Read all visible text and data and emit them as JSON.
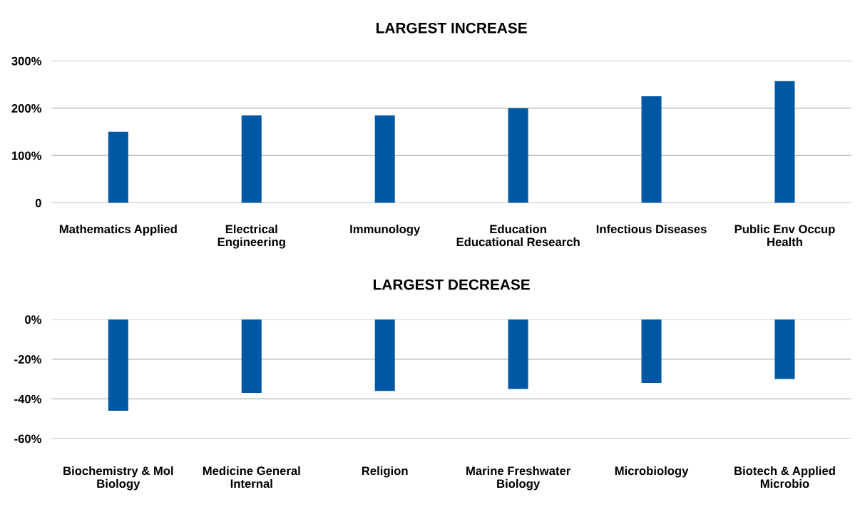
{
  "chart_data": [
    {
      "type": "bar",
      "title": "LARGEST INCREASE",
      "categories": [
        "Mathematics Applied",
        "Electrical Engineering",
        "Immunology",
        "Education Educational Research",
        "Infectious Diseases",
        "Public Env Occup Health"
      ],
      "values": [
        150,
        185,
        185,
        200,
        225,
        257
      ],
      "color": "#0057a4",
      "ylim": [
        0,
        300
      ],
      "yticks": [
        {
          "value": 0,
          "label": "0"
        },
        {
          "value": 100,
          "label": "100%"
        },
        {
          "value": 200,
          "label": "200%"
        },
        {
          "value": 300,
          "label": "300%"
        }
      ],
      "grid": "y"
    },
    {
      "type": "bar",
      "title": "LARGEST DECREASE",
      "categories": [
        "Biochemistry & Mol Biology",
        "Medicine General Internal",
        "Religion",
        "Marine Freshwater Biology",
        "Microbiology",
        "Biotech & Applied Microbio"
      ],
      "values": [
        -46,
        -37,
        -36,
        -35,
        -32,
        -30
      ],
      "color": "#0057a4",
      "ylim": [
        -60,
        0
      ],
      "yticks": [
        {
          "value": 0,
          "label": "0%"
        },
        {
          "value": -20,
          "label": "-20%"
        },
        {
          "value": -40,
          "label": "-40%"
        },
        {
          "value": -60,
          "label": "-60%"
        }
      ],
      "grid": "y"
    }
  ]
}
